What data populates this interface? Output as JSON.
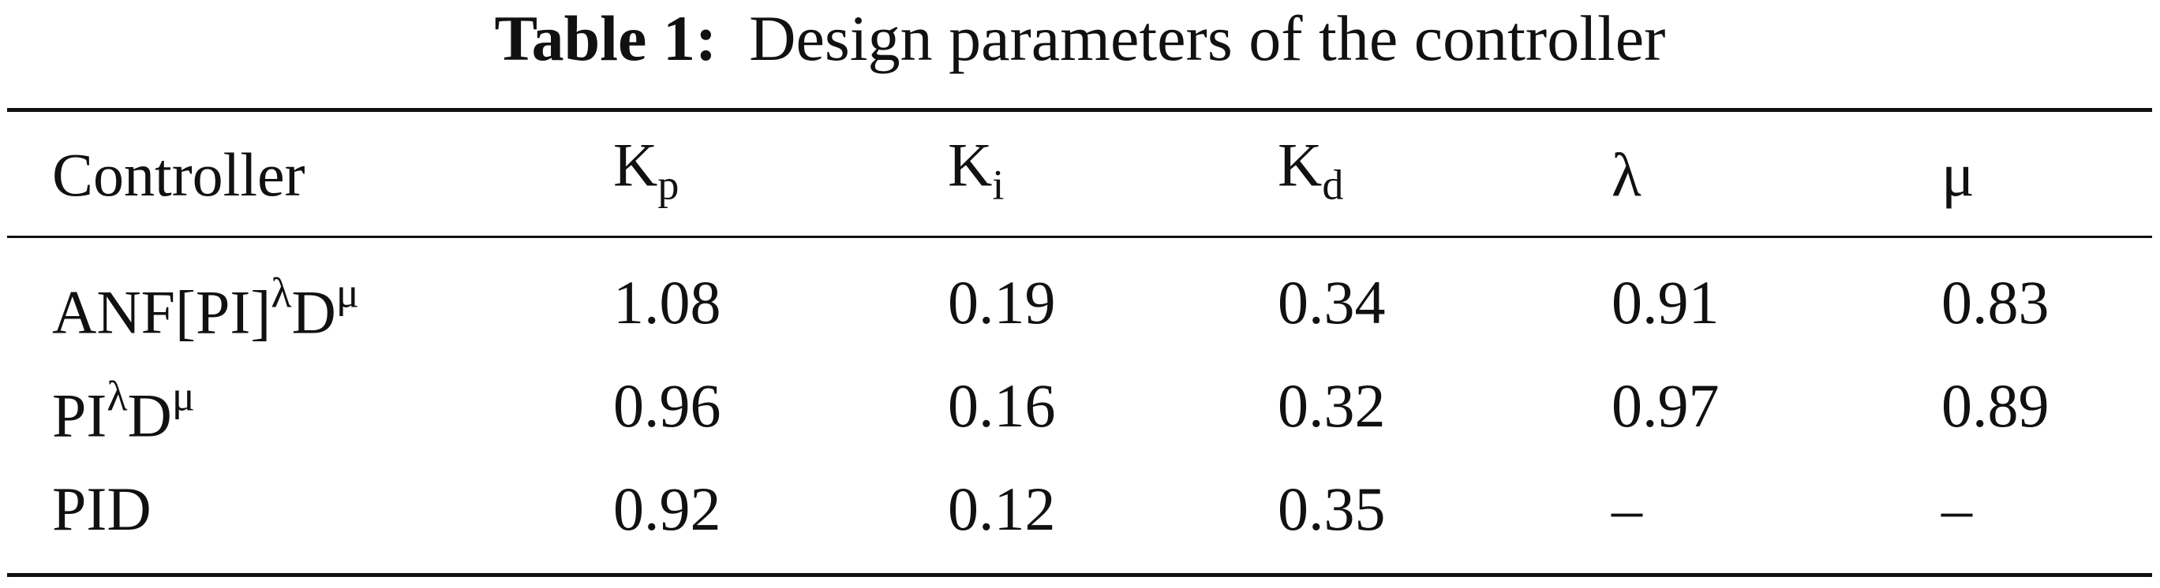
{
  "caption": {
    "label": "Table 1:",
    "text": "  Design parameters of the controller"
  },
  "table": {
    "header": [
      [
        {
          "text": "Controller"
        }
      ],
      [
        {
          "text": "K"
        },
        {
          "sub": "p"
        }
      ],
      [
        {
          "text": "K"
        },
        {
          "sub": "i"
        }
      ],
      [
        {
          "text": "K"
        },
        {
          "sub": "d"
        }
      ],
      [
        {
          "text": "λ"
        }
      ],
      [
        {
          "text": "μ"
        }
      ]
    ],
    "rows": [
      [
        [
          {
            "text": "ANF[PI]"
          },
          {
            "sup": "λ"
          },
          {
            "text": "D"
          },
          {
            "sup": "μ"
          }
        ],
        "1.08",
        "0.19",
        "0.34",
        "0.91",
        "0.83"
      ],
      [
        [
          {
            "text": "PI"
          },
          {
            "sup": "λ"
          },
          {
            "text": "D"
          },
          {
            "sup": "μ"
          }
        ],
        "0.96",
        "0.16",
        "0.32",
        "0.97",
        "0.89"
      ],
      [
        [
          {
            "text": "PID"
          }
        ],
        "0.92",
        "0.12",
        "0.35",
        "–",
        "–"
      ]
    ]
  }
}
